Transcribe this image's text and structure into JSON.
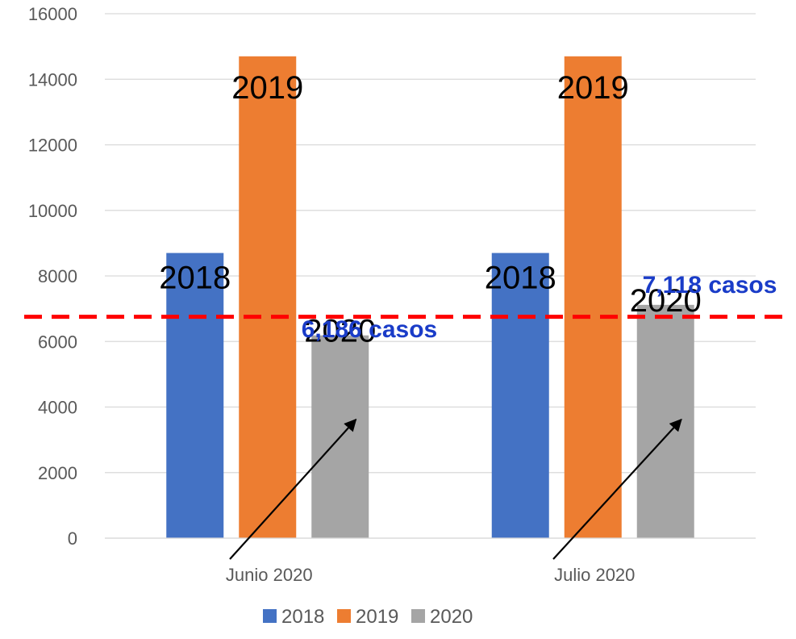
{
  "chart_data": {
    "type": "bar",
    "categories": [
      "Junio 2020",
      "Julio 2020"
    ],
    "series": [
      {
        "name": "2018",
        "values": [
          8700,
          8700
        ],
        "color": "#4472C4",
        "bar_label": "2018"
      },
      {
        "name": "2019",
        "values": [
          14700,
          14700
        ],
        "color": "#ED7D31",
        "bar_label": "2019"
      },
      {
        "name": "2020",
        "values": [
          6186,
          7118
        ],
        "color": "#A5A5A5",
        "bar_label": "2020"
      }
    ],
    "ylim": [
      0,
      16000
    ],
    "yticks": [
      "0",
      "2000",
      "4000",
      "6000",
      "8000",
      "10000",
      "12000",
      "14000",
      "16000"
    ],
    "grid": true,
    "legend_position": "bottom",
    "reference_line": {
      "value": 7000,
      "color": "#FF0000",
      "style": "dashed"
    },
    "annotations": [
      {
        "text": "6,186 casos",
        "category": "Junio 2020",
        "color": "#1A3CC8"
      },
      {
        "text": "7,118 casos",
        "category": "Julio 2020",
        "color": "#1A3CC8"
      }
    ]
  }
}
